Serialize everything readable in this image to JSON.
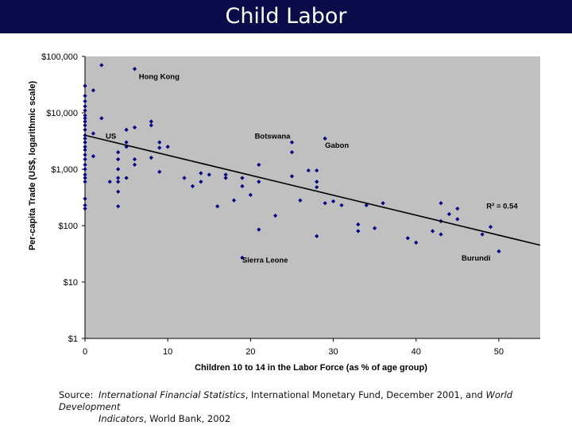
{
  "slide": {
    "title": "Child Labor"
  },
  "source": {
    "label": "Source:",
    "line1_italic": "International Financial Statistics",
    "line1_rest": ", International Monetary Fund, December 2001, and ",
    "line1_italic2": "World Development",
    "line2_italic": "Indicators",
    "line2_rest": ", World Bank, 2002"
  },
  "chart_data": {
    "type": "scatter",
    "xlabel": "Children 10 to 14 in the Labor Force (as % of age group)",
    "ylabel": "Per-capita Trade (US$, logarithmic scale)",
    "xlim": [
      0,
      55
    ],
    "ylim": [
      1,
      100000
    ],
    "y_scale": "log",
    "x_ticks": [
      "0",
      "10",
      "20",
      "30",
      "40",
      "50"
    ],
    "y_ticks": [
      "$1",
      "$10",
      "$100",
      "$1,000",
      "$10,000",
      "$100,000"
    ],
    "background": "#c0c0c0",
    "marker_color": "#000080",
    "trendline": {
      "x": [
        0,
        55
      ],
      "y": [
        4000,
        45
      ]
    },
    "r2_label": "R² = 0.54",
    "annotations": [
      {
        "text": "Hong Kong",
        "x": 6.5,
        "y": 40000
      },
      {
        "text": "US",
        "x": 2.5,
        "y": 3500
      },
      {
        "text": "Botswana",
        "x": 20.5,
        "y": 3500
      },
      {
        "text": "Gabon",
        "x": 29,
        "y": 2400
      },
      {
        "text": "Sierra Leone",
        "x": 19,
        "y": 22
      },
      {
        "text": "Burundi",
        "x": 45.5,
        "y": 24
      },
      {
        "text": "R² = 0.54",
        "x": 48.5,
        "y": 200
      }
    ],
    "points": [
      [
        0,
        30000
      ],
      [
        0,
        20000
      ],
      [
        0,
        16000
      ],
      [
        0,
        13000
      ],
      [
        0,
        11000
      ],
      [
        0,
        9000
      ],
      [
        0,
        8000
      ],
      [
        0,
        7000
      ],
      [
        0,
        6000
      ],
      [
        0,
        5000
      ],
      [
        0,
        4000
      ],
      [
        0,
        3500
      ],
      [
        0,
        3000
      ],
      [
        0,
        2500
      ],
      [
        0,
        2200
      ],
      [
        0,
        1800
      ],
      [
        0,
        1500
      ],
      [
        0,
        1200
      ],
      [
        0,
        1000
      ],
      [
        0,
        800
      ],
      [
        0,
        700
      ],
      [
        0,
        600
      ],
      [
        0,
        300
      ],
      [
        0,
        230
      ],
      [
        0,
        200
      ],
      [
        1,
        4300
      ],
      [
        1,
        25000
      ],
      [
        2,
        70000
      ],
      [
        2,
        8000
      ],
      [
        1,
        1700
      ],
      [
        3,
        600
      ],
      [
        4,
        2000
      ],
      [
        4,
        1500
      ],
      [
        4,
        1000
      ],
      [
        4,
        700
      ],
      [
        4,
        600
      ],
      [
        4,
        400
      ],
      [
        4,
        220
      ],
      [
        5,
        5000
      ],
      [
        5,
        3000
      ],
      [
        5,
        2500
      ],
      [
        5,
        700
      ],
      [
        6,
        60000
      ],
      [
        6,
        5500
      ],
      [
        6,
        1500
      ],
      [
        6,
        1200
      ],
      [
        8,
        7000
      ],
      [
        8,
        6000
      ],
      [
        8,
        1600
      ],
      [
        9,
        3000
      ],
      [
        9,
        2400
      ],
      [
        9,
        900
      ],
      [
        10,
        2500
      ],
      [
        12,
        700
      ],
      [
        13,
        500
      ],
      [
        14,
        850
      ],
      [
        14,
        600
      ],
      [
        15,
        800
      ],
      [
        16,
        220
      ],
      [
        17,
        800
      ],
      [
        17,
        700
      ],
      [
        18,
        280
      ],
      [
        19,
        27
      ],
      [
        19,
        700
      ],
      [
        19,
        500
      ],
      [
        20,
        350
      ],
      [
        21,
        1200
      ],
      [
        21,
        600
      ],
      [
        21,
        85
      ],
      [
        23,
        150
      ],
      [
        25,
        3000
      ],
      [
        25,
        2000
      ],
      [
        25,
        750
      ],
      [
        26,
        280
      ],
      [
        27,
        950
      ],
      [
        28,
        950
      ],
      [
        28,
        600
      ],
      [
        28,
        480
      ],
      [
        28,
        65
      ],
      [
        29,
        3500
      ],
      [
        29,
        250
      ],
      [
        30,
        270
      ],
      [
        31,
        230
      ],
      [
        33,
        105
      ],
      [
        33,
        80
      ],
      [
        34,
        230
      ],
      [
        35,
        90
      ],
      [
        36,
        250
      ],
      [
        39,
        60
      ],
      [
        40,
        50
      ],
      [
        42,
        80
      ],
      [
        43,
        250
      ],
      [
        43,
        120
      ],
      [
        43,
        70
      ],
      [
        44,
        160
      ],
      [
        45,
        200
      ],
      [
        45,
        130
      ],
      [
        48,
        70
      ],
      [
        49,
        95
      ],
      [
        50,
        35
      ]
    ]
  }
}
